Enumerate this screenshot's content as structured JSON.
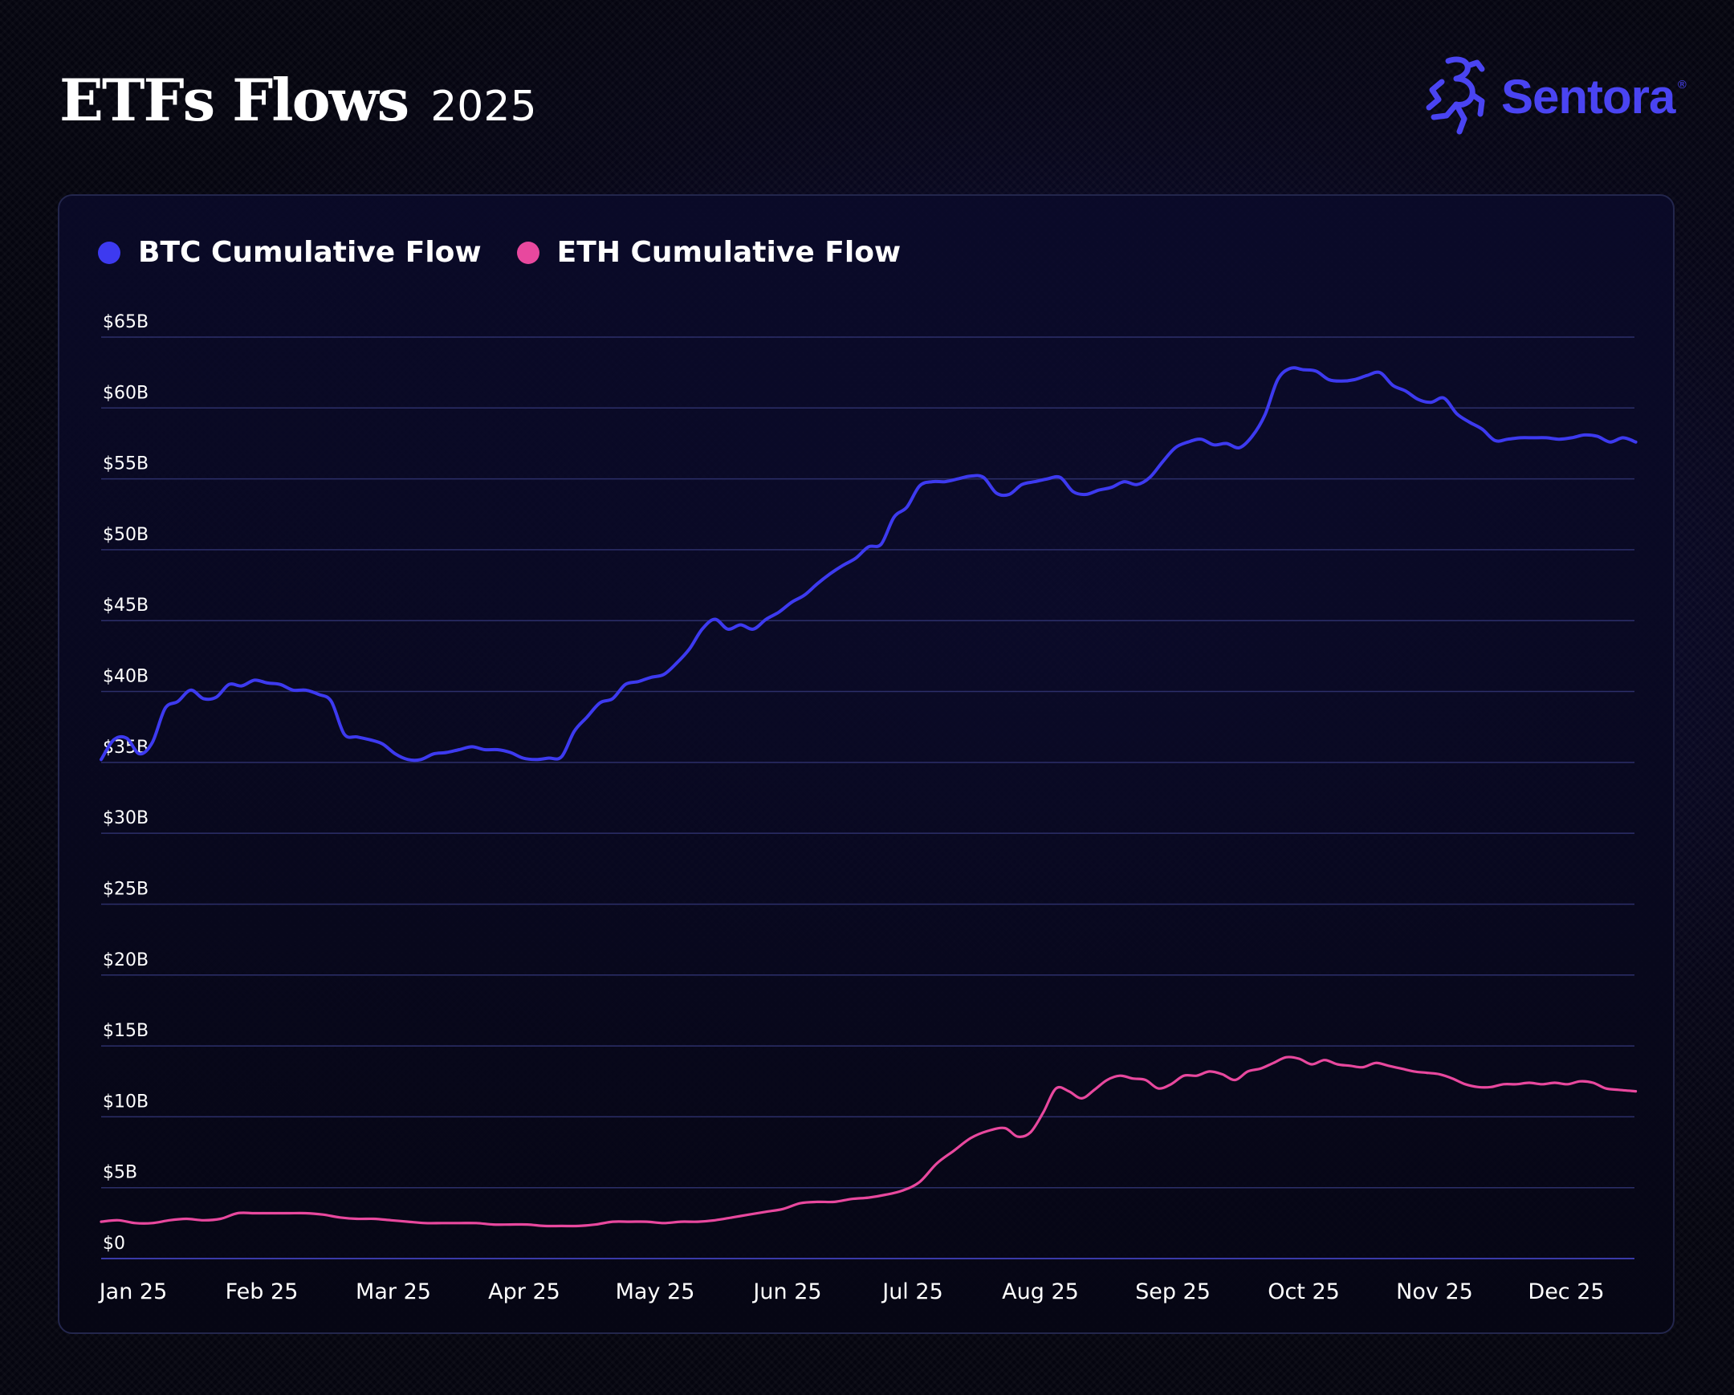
{
  "header": {
    "title": "ETFs Flows",
    "subtitle": "2025"
  },
  "brand": {
    "name": "Sentora",
    "registered_mark": "®",
    "color": "#4a44f2",
    "icon": "sentora-logo-icon"
  },
  "legend": [
    {
      "label": "BTC Cumulative Flow",
      "color": "#3d3af0"
    },
    {
      "label": "ETH Cumulative Flow",
      "color": "#e8489e"
    }
  ],
  "chart_data": {
    "type": "line",
    "title": "ETFs Flows",
    "xlabel": "",
    "ylabel": "",
    "ylim": [
      0,
      65
    ],
    "grid": true,
    "legend_position": "top-left",
    "y_ticks": [
      {
        "value": 65,
        "label": "$65B"
      },
      {
        "value": 60,
        "label": "$60B"
      },
      {
        "value": 55,
        "label": "$55B"
      },
      {
        "value": 50,
        "label": "$50B"
      },
      {
        "value": 45,
        "label": "$45B"
      },
      {
        "value": 40,
        "label": "$40B"
      },
      {
        "value": 35,
        "label": "$35B"
      },
      {
        "value": 30,
        "label": "$30B"
      },
      {
        "value": 25,
        "label": "$25B"
      },
      {
        "value": 20,
        "label": "$20B"
      },
      {
        "value": 15,
        "label": "$15B"
      },
      {
        "value": 10,
        "label": "$10B"
      },
      {
        "value": 5,
        "label": "$5B"
      },
      {
        "value": 0,
        "label": "$0"
      }
    ],
    "x_ticks": [
      {
        "date": "2025-01-01",
        "label": "Jan 25"
      },
      {
        "date": "2025-02-01",
        "label": "Feb 25"
      },
      {
        "date": "2025-03-01",
        "label": "Mar 25"
      },
      {
        "date": "2025-04-01",
        "label": "Apr 25"
      },
      {
        "date": "2025-05-01",
        "label": "May 25"
      },
      {
        "date": "2025-06-01",
        "label": "Jun 25"
      },
      {
        "date": "2025-07-01",
        "label": "Jul 25"
      },
      {
        "date": "2025-08-01",
        "label": "Aug 25"
      },
      {
        "date": "2025-09-01",
        "label": "Sep 25"
      },
      {
        "date": "2025-10-01",
        "label": "Oct 25"
      },
      {
        "date": "2025-11-01",
        "label": "Nov 25"
      },
      {
        "date": "2025-12-01",
        "label": "Dec 25"
      }
    ],
    "series": [
      {
        "name": "BTC Cumulative Flow",
        "color": "#3d3af0",
        "points": [
          [
            "2025-01-01",
            35.2
          ],
          [
            "2025-01-04",
            36.6
          ],
          [
            "2025-01-07",
            36.7
          ],
          [
            "2025-01-10",
            35.6
          ],
          [
            "2025-01-13",
            36.4
          ],
          [
            "2025-01-16",
            38.8
          ],
          [
            "2025-01-19",
            39.3
          ],
          [
            "2025-01-22",
            40.1
          ],
          [
            "2025-01-25",
            39.5
          ],
          [
            "2025-01-28",
            39.6
          ],
          [
            "2025-01-31",
            40.5
          ],
          [
            "2025-02-03",
            40.4
          ],
          [
            "2025-02-06",
            40.8
          ],
          [
            "2025-02-09",
            40.6
          ],
          [
            "2025-02-12",
            40.5
          ],
          [
            "2025-02-15",
            40.1
          ],
          [
            "2025-02-18",
            40.1
          ],
          [
            "2025-02-21",
            39.8
          ],
          [
            "2025-02-24",
            39.3
          ],
          [
            "2025-02-27",
            37.0
          ],
          [
            "2025-03-02",
            36.8
          ],
          [
            "2025-03-05",
            36.6
          ],
          [
            "2025-03-08",
            36.3
          ],
          [
            "2025-03-11",
            35.6
          ],
          [
            "2025-03-14",
            35.2
          ],
          [
            "2025-03-17",
            35.2
          ],
          [
            "2025-03-20",
            35.6
          ],
          [
            "2025-03-23",
            35.7
          ],
          [
            "2025-03-26",
            35.9
          ],
          [
            "2025-03-29",
            36.1
          ],
          [
            "2025-04-01",
            35.9
          ],
          [
            "2025-04-04",
            35.9
          ],
          [
            "2025-04-07",
            35.7
          ],
          [
            "2025-04-10",
            35.3
          ],
          [
            "2025-04-13",
            35.2
          ],
          [
            "2025-04-16",
            35.3
          ],
          [
            "2025-04-19",
            35.4
          ],
          [
            "2025-04-22",
            37.2
          ],
          [
            "2025-04-25",
            38.2
          ],
          [
            "2025-04-28",
            39.2
          ],
          [
            "2025-05-01",
            39.5
          ],
          [
            "2025-05-04",
            40.5
          ],
          [
            "2025-05-07",
            40.7
          ],
          [
            "2025-05-10",
            41.0
          ],
          [
            "2025-05-13",
            41.2
          ],
          [
            "2025-05-16",
            42.0
          ],
          [
            "2025-05-19",
            43.0
          ],
          [
            "2025-05-22",
            44.4
          ],
          [
            "2025-05-25",
            45.1
          ],
          [
            "2025-05-28",
            44.4
          ],
          [
            "2025-05-31",
            44.7
          ],
          [
            "2025-06-03",
            44.4
          ],
          [
            "2025-06-06",
            45.1
          ],
          [
            "2025-06-09",
            45.6
          ],
          [
            "2025-06-12",
            46.3
          ],
          [
            "2025-06-15",
            46.8
          ],
          [
            "2025-06-18",
            47.6
          ],
          [
            "2025-06-21",
            48.3
          ],
          [
            "2025-06-24",
            48.9
          ],
          [
            "2025-06-27",
            49.4
          ],
          [
            "2025-06-30",
            50.2
          ],
          [
            "2025-07-03",
            50.4
          ],
          [
            "2025-07-06",
            52.3
          ],
          [
            "2025-07-09",
            53.0
          ],
          [
            "2025-07-12",
            54.5
          ],
          [
            "2025-07-15",
            54.8
          ],
          [
            "2025-07-18",
            54.8
          ],
          [
            "2025-07-21",
            55.0
          ],
          [
            "2025-07-24",
            55.2
          ],
          [
            "2025-07-27",
            55.1
          ],
          [
            "2025-07-30",
            54.0
          ],
          [
            "2025-08-02",
            53.9
          ],
          [
            "2025-08-05",
            54.6
          ],
          [
            "2025-08-08",
            54.8
          ],
          [
            "2025-08-11",
            55.0
          ],
          [
            "2025-08-14",
            55.1
          ],
          [
            "2025-08-17",
            54.1
          ],
          [
            "2025-08-20",
            53.9
          ],
          [
            "2025-08-23",
            54.2
          ],
          [
            "2025-08-26",
            54.4
          ],
          [
            "2025-08-29",
            54.8
          ],
          [
            "2025-09-01",
            54.6
          ],
          [
            "2025-09-04",
            55.1
          ],
          [
            "2025-09-07",
            56.2
          ],
          [
            "2025-09-10",
            57.2
          ],
          [
            "2025-09-13",
            57.6
          ],
          [
            "2025-09-16",
            57.8
          ],
          [
            "2025-09-19",
            57.4
          ],
          [
            "2025-09-22",
            57.5
          ],
          [
            "2025-09-25",
            57.2
          ],
          [
            "2025-09-28",
            58.0
          ],
          [
            "2025-10-01",
            59.5
          ],
          [
            "2025-10-04",
            62.0
          ],
          [
            "2025-10-07",
            62.8
          ],
          [
            "2025-10-10",
            62.7
          ],
          [
            "2025-10-13",
            62.6
          ],
          [
            "2025-10-16",
            62.0
          ],
          [
            "2025-10-19",
            61.9
          ],
          [
            "2025-10-22",
            62.0
          ],
          [
            "2025-10-25",
            62.3
          ],
          [
            "2025-10-28",
            62.5
          ],
          [
            "2025-10-31",
            61.6
          ],
          [
            "2025-11-03",
            61.2
          ],
          [
            "2025-11-06",
            60.6
          ],
          [
            "2025-11-09",
            60.4
          ],
          [
            "2025-11-12",
            60.7
          ],
          [
            "2025-11-15",
            59.6
          ],
          [
            "2025-11-18",
            59.0
          ],
          [
            "2025-11-21",
            58.5
          ],
          [
            "2025-11-24",
            57.7
          ],
          [
            "2025-11-27",
            57.8
          ],
          [
            "2025-11-30",
            57.9
          ],
          [
            "2025-12-03",
            57.9
          ],
          [
            "2025-12-06",
            57.9
          ],
          [
            "2025-12-09",
            57.8
          ],
          [
            "2025-12-12",
            57.9
          ],
          [
            "2025-12-15",
            58.1
          ],
          [
            "2025-12-18",
            58.0
          ],
          [
            "2025-12-21",
            57.6
          ],
          [
            "2025-12-24",
            57.9
          ],
          [
            "2025-12-27",
            57.6
          ]
        ]
      },
      {
        "name": "ETH Cumulative Flow",
        "color": "#e8489e",
        "points": [
          [
            "2025-01-01",
            2.6
          ],
          [
            "2025-01-05",
            2.7
          ],
          [
            "2025-01-09",
            2.5
          ],
          [
            "2025-01-13",
            2.5
          ],
          [
            "2025-01-17",
            2.7
          ],
          [
            "2025-01-21",
            2.8
          ],
          [
            "2025-01-25",
            2.7
          ],
          [
            "2025-01-29",
            2.8
          ],
          [
            "2025-02-02",
            3.2
          ],
          [
            "2025-02-06",
            3.2
          ],
          [
            "2025-02-10",
            3.2
          ],
          [
            "2025-02-14",
            3.2
          ],
          [
            "2025-02-18",
            3.2
          ],
          [
            "2025-02-22",
            3.1
          ],
          [
            "2025-02-26",
            2.9
          ],
          [
            "2025-03-02",
            2.8
          ],
          [
            "2025-03-06",
            2.8
          ],
          [
            "2025-03-10",
            2.7
          ],
          [
            "2025-03-14",
            2.6
          ],
          [
            "2025-03-18",
            2.5
          ],
          [
            "2025-03-22",
            2.5
          ],
          [
            "2025-03-26",
            2.5
          ],
          [
            "2025-03-30",
            2.5
          ],
          [
            "2025-04-03",
            2.4
          ],
          [
            "2025-04-07",
            2.4
          ],
          [
            "2025-04-11",
            2.4
          ],
          [
            "2025-04-15",
            2.3
          ],
          [
            "2025-04-19",
            2.3
          ],
          [
            "2025-04-23",
            2.3
          ],
          [
            "2025-04-27",
            2.4
          ],
          [
            "2025-05-01",
            2.6
          ],
          [
            "2025-05-05",
            2.6
          ],
          [
            "2025-05-09",
            2.6
          ],
          [
            "2025-05-13",
            2.5
          ],
          [
            "2025-05-17",
            2.6
          ],
          [
            "2025-05-21",
            2.6
          ],
          [
            "2025-05-25",
            2.7
          ],
          [
            "2025-05-29",
            2.9
          ],
          [
            "2025-06-02",
            3.1
          ],
          [
            "2025-06-06",
            3.3
          ],
          [
            "2025-06-10",
            3.5
          ],
          [
            "2025-06-14",
            3.9
          ],
          [
            "2025-06-18",
            4.0
          ],
          [
            "2025-06-22",
            4.0
          ],
          [
            "2025-06-26",
            4.2
          ],
          [
            "2025-06-30",
            4.3
          ],
          [
            "2025-07-04",
            4.5
          ],
          [
            "2025-07-08",
            4.8
          ],
          [
            "2025-07-12",
            5.4
          ],
          [
            "2025-07-16",
            6.7
          ],
          [
            "2025-07-20",
            7.6
          ],
          [
            "2025-07-24",
            8.5
          ],
          [
            "2025-07-28",
            9.0
          ],
          [
            "2025-08-01",
            9.2
          ],
          [
            "2025-08-04",
            8.6
          ],
          [
            "2025-08-07",
            8.9
          ],
          [
            "2025-08-10",
            10.3
          ],
          [
            "2025-08-13",
            12.0
          ],
          [
            "2025-08-16",
            11.8
          ],
          [
            "2025-08-19",
            11.3
          ],
          [
            "2025-08-22",
            11.9
          ],
          [
            "2025-08-25",
            12.6
          ],
          [
            "2025-08-28",
            12.9
          ],
          [
            "2025-08-31",
            12.7
          ],
          [
            "2025-09-03",
            12.6
          ],
          [
            "2025-09-06",
            12.0
          ],
          [
            "2025-09-09",
            12.3
          ],
          [
            "2025-09-12",
            12.9
          ],
          [
            "2025-09-15",
            12.9
          ],
          [
            "2025-09-18",
            13.2
          ],
          [
            "2025-09-21",
            13.0
          ],
          [
            "2025-09-24",
            12.6
          ],
          [
            "2025-09-27",
            13.2
          ],
          [
            "2025-09-30",
            13.4
          ],
          [
            "2025-10-03",
            13.8
          ],
          [
            "2025-10-06",
            14.2
          ],
          [
            "2025-10-09",
            14.1
          ],
          [
            "2025-10-12",
            13.7
          ],
          [
            "2025-10-15",
            14.0
          ],
          [
            "2025-10-18",
            13.7
          ],
          [
            "2025-10-21",
            13.6
          ],
          [
            "2025-10-24",
            13.5
          ],
          [
            "2025-10-27",
            13.8
          ],
          [
            "2025-10-30",
            13.6
          ],
          [
            "2025-11-02",
            13.4
          ],
          [
            "2025-11-05",
            13.2
          ],
          [
            "2025-11-08",
            13.1
          ],
          [
            "2025-11-11",
            13.0
          ],
          [
            "2025-11-14",
            12.7
          ],
          [
            "2025-11-17",
            12.3
          ],
          [
            "2025-11-20",
            12.1
          ],
          [
            "2025-11-23",
            12.1
          ],
          [
            "2025-11-26",
            12.3
          ],
          [
            "2025-11-29",
            12.3
          ],
          [
            "2025-12-02",
            12.4
          ],
          [
            "2025-12-05",
            12.3
          ],
          [
            "2025-12-08",
            12.4
          ],
          [
            "2025-12-11",
            12.3
          ],
          [
            "2025-12-14",
            12.5
          ],
          [
            "2025-12-17",
            12.4
          ],
          [
            "2025-12-20",
            12.0
          ],
          [
            "2025-12-23",
            11.9
          ],
          [
            "2025-12-27",
            11.8
          ]
        ]
      }
    ]
  }
}
